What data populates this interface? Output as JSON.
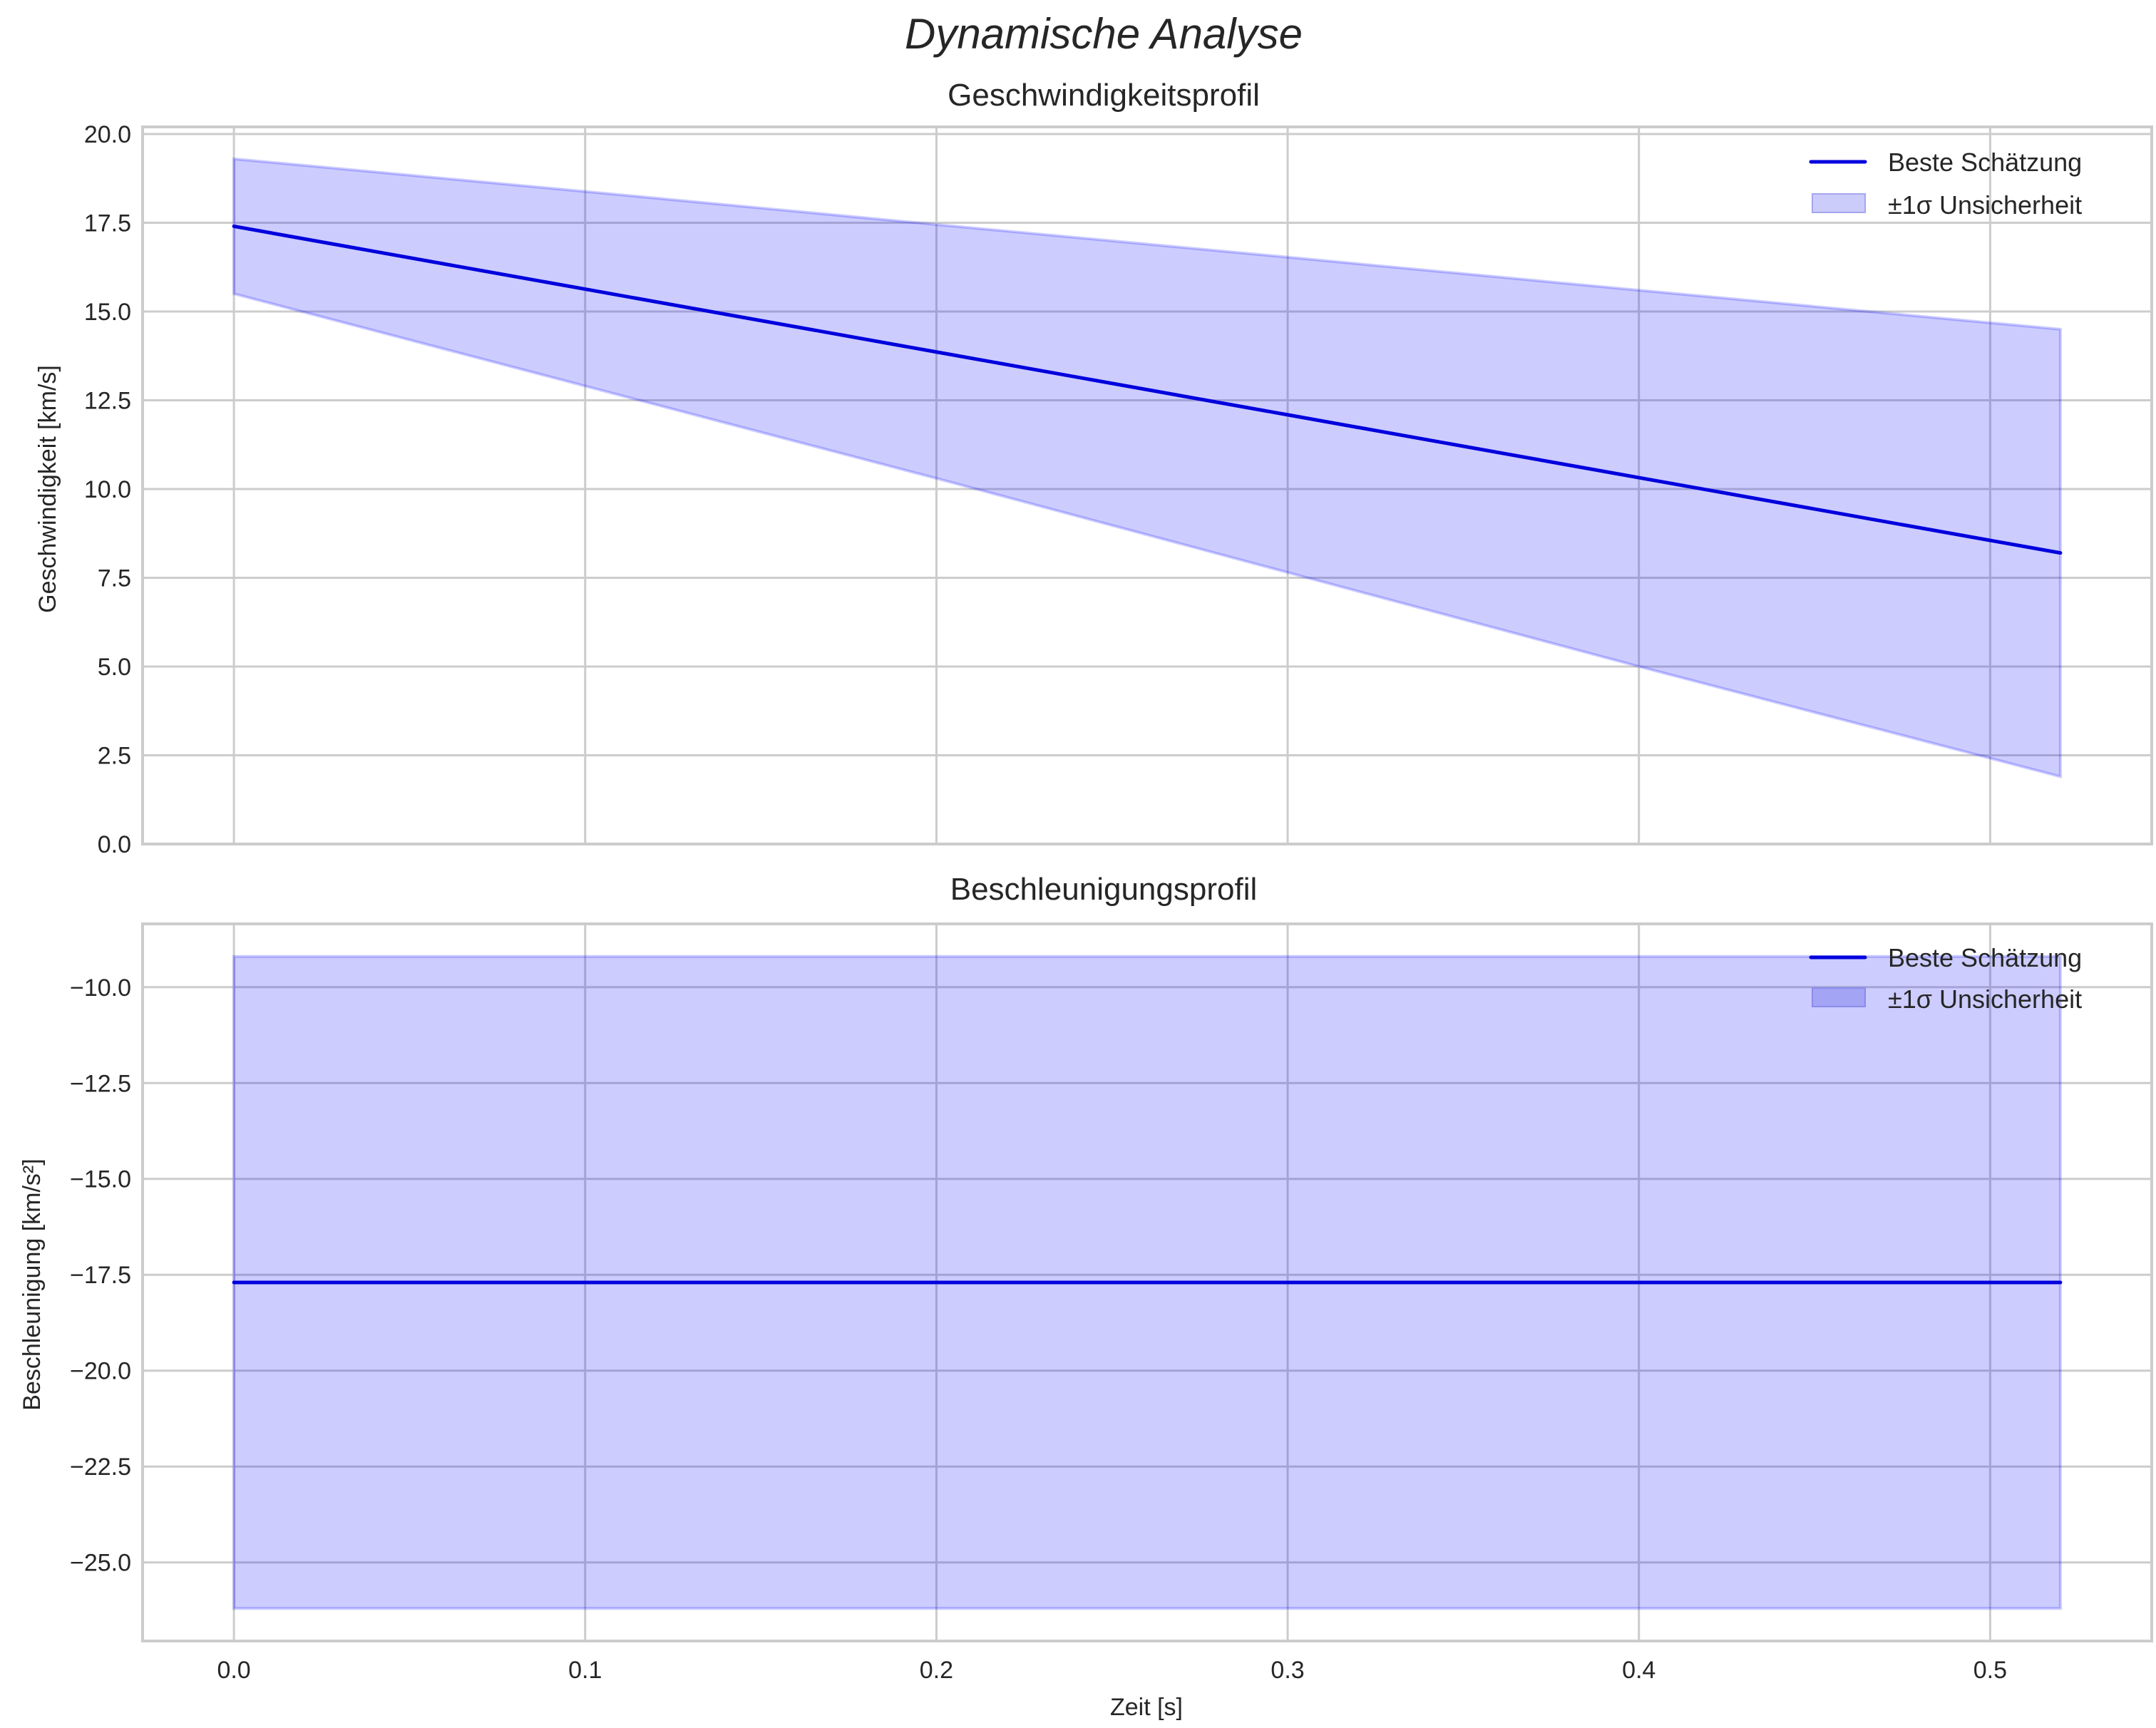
{
  "figure": {
    "title": "Dynamische Analyse"
  },
  "chart_data": [
    {
      "type": "line",
      "title": "Geschwindigkeitsprofil",
      "xlabel": "",
      "ylabel": "Geschwindigkeit [km/s]",
      "xlim": [
        -0.026,
        0.546
      ],
      "ylim": [
        0.0,
        20.2
      ],
      "xticks": [
        "0.0",
        "0.1",
        "0.2",
        "0.3",
        "0.4",
        "0.5"
      ],
      "yticks": [
        "0.0",
        "2.5",
        "5.0",
        "7.5",
        "10.0",
        "12.5",
        "15.0",
        "17.5",
        "20.0"
      ],
      "grid": true,
      "legend_position": "upper right",
      "legend": [
        "Beste Schätzung",
        "±1σ Unsicherheit"
      ],
      "x": [
        0.0,
        0.1,
        0.2,
        0.3,
        0.4,
        0.52
      ],
      "series": [
        {
          "name": "Beste Schätzung",
          "kind": "line",
          "color": "#0000dd",
          "values": [
            17.4,
            15.63,
            13.86,
            12.09,
            10.32,
            8.2
          ]
        },
        {
          "name": "±1σ Unsicherheit (oben)",
          "kind": "band-upper",
          "color": "#0000ff",
          "alpha": 0.2,
          "values": [
            19.3,
            18.38,
            17.45,
            16.53,
            15.6,
            14.5
          ]
        },
        {
          "name": "±1σ Unsicherheit (unten)",
          "kind": "band-lower",
          "color": "#0000ff",
          "alpha": 0.2,
          "values": [
            15.5,
            12.9,
            10.3,
            7.65,
            5.0,
            1.9
          ]
        }
      ]
    },
    {
      "type": "line",
      "title": "Beschleunigungsprofil",
      "xlabel": "Zeit [s]",
      "ylabel": "Beschleunigung [km/s²]",
      "xlim": [
        -0.026,
        0.546
      ],
      "ylim": [
        -27.05,
        -8.35
      ],
      "xticks": [
        "0.0",
        "0.1",
        "0.2",
        "0.3",
        "0.4",
        "0.5"
      ],
      "yticks": [
        "−10.0",
        "−12.5",
        "−15.0",
        "−17.5",
        "−20.0",
        "−22.5",
        "−25.0"
      ],
      "grid": true,
      "legend_position": "upper right",
      "legend": [
        "Beste Schätzung",
        "±1σ Unsicherheit"
      ],
      "x": [
        0.0,
        0.1,
        0.2,
        0.3,
        0.4,
        0.52
      ],
      "series": [
        {
          "name": "Beste Schätzung",
          "kind": "line",
          "color": "#0000dd",
          "values": [
            -17.7,
            -17.7,
            -17.7,
            -17.7,
            -17.7,
            -17.7
          ]
        },
        {
          "name": "±1σ Unsicherheit (oben)",
          "kind": "band-upper",
          "color": "#0000ff",
          "alpha": 0.2,
          "values": [
            -9.2,
            -9.2,
            -9.2,
            -9.2,
            -9.2,
            -9.2
          ]
        },
        {
          "name": "±1σ Unsicherheit (unten)",
          "kind": "band-lower",
          "color": "#0000ff",
          "alpha": 0.2,
          "values": [
            -26.2,
            -26.2,
            -26.2,
            -26.2,
            -26.2,
            -26.2
          ]
        }
      ]
    }
  ],
  "colors": {
    "line": "#0000dd",
    "band_fill": "#ccccfa",
    "band_edge": "#a5a5f0",
    "grid": "#cccccc",
    "axis_edge": "#cccccc",
    "text": "#262626"
  }
}
